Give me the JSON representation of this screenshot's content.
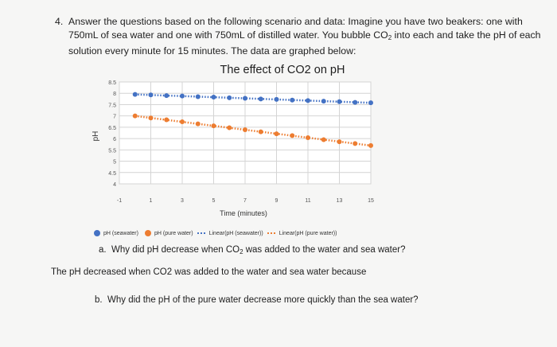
{
  "question": {
    "number": "4.",
    "text_part1": "Answer the questions based on the following scenario and data: Imagine you have two beakers: one with 750mL of sea water and one with 750mL of distilled water. You bubble CO",
    "co2_sub": "2",
    "text_part2": " into each and take the pH of each solution every minute for 15 minutes. The data are graphed below:"
  },
  "chart_data": {
    "type": "scatter",
    "title": "The effect of CO2 on pH",
    "xlabel": "Time (minutes)",
    "ylabel": "pH",
    "xlim": [
      -1,
      15
    ],
    "ylim": [
      4,
      8.5
    ],
    "x_ticks": [
      "-1",
      "1",
      "3",
      "5",
      "7",
      "9",
      "11",
      "13",
      "15"
    ],
    "y_ticks": [
      "8.5",
      "8",
      "7.5",
      "7",
      "6.5",
      "6",
      "5.5",
      "5",
      "4.5",
      "4"
    ],
    "grid": true,
    "legend_position": "bottom",
    "series": [
      {
        "name": "pH (seawater)",
        "color": "#4472c4",
        "x": [
          0,
          1,
          2,
          3,
          4,
          5,
          6,
          7,
          8,
          9,
          10,
          11,
          12,
          13,
          14,
          15
        ],
        "y": [
          7.95,
          7.93,
          7.9,
          7.88,
          7.85,
          7.83,
          7.8,
          7.78,
          7.75,
          7.73,
          7.7,
          7.68,
          7.65,
          7.63,
          7.6,
          7.58
        ]
      },
      {
        "name": "pH (pure water)",
        "color": "#ed7d31",
        "x": [
          0,
          1,
          2,
          3,
          4,
          5,
          6,
          7,
          8,
          9,
          10,
          11,
          12,
          13,
          14,
          15
        ],
        "y": [
          7.0,
          6.91,
          6.83,
          6.74,
          6.65,
          6.56,
          6.48,
          6.39,
          6.3,
          6.21,
          6.13,
          6.04,
          5.95,
          5.86,
          5.78,
          5.69
        ]
      }
    ],
    "trendlines": [
      {
        "name": "Linear(pH (seawater))",
        "color": "#4472c4"
      },
      {
        "name": "Linear(pH (pure water))",
        "color": "#ed7d31"
      }
    ]
  },
  "legend": {
    "seawater": "pH (seawater)",
    "pure": "pH (pure water)",
    "lin_sea": "Linear(pH (seawater))",
    "lin_pure": "Linear(pH (pure water))"
  },
  "qa": {
    "label": "a.",
    "text_part1": "Why did pH decrease when CO",
    "sub": "2",
    "text_part2": " was added to the water and sea water?"
  },
  "answer": "The pH decreased when CO2 was added to the water and sea water because",
  "qb": {
    "label": "b.",
    "text": "Why did the pH of the pure water decrease more quickly than the sea water?"
  }
}
